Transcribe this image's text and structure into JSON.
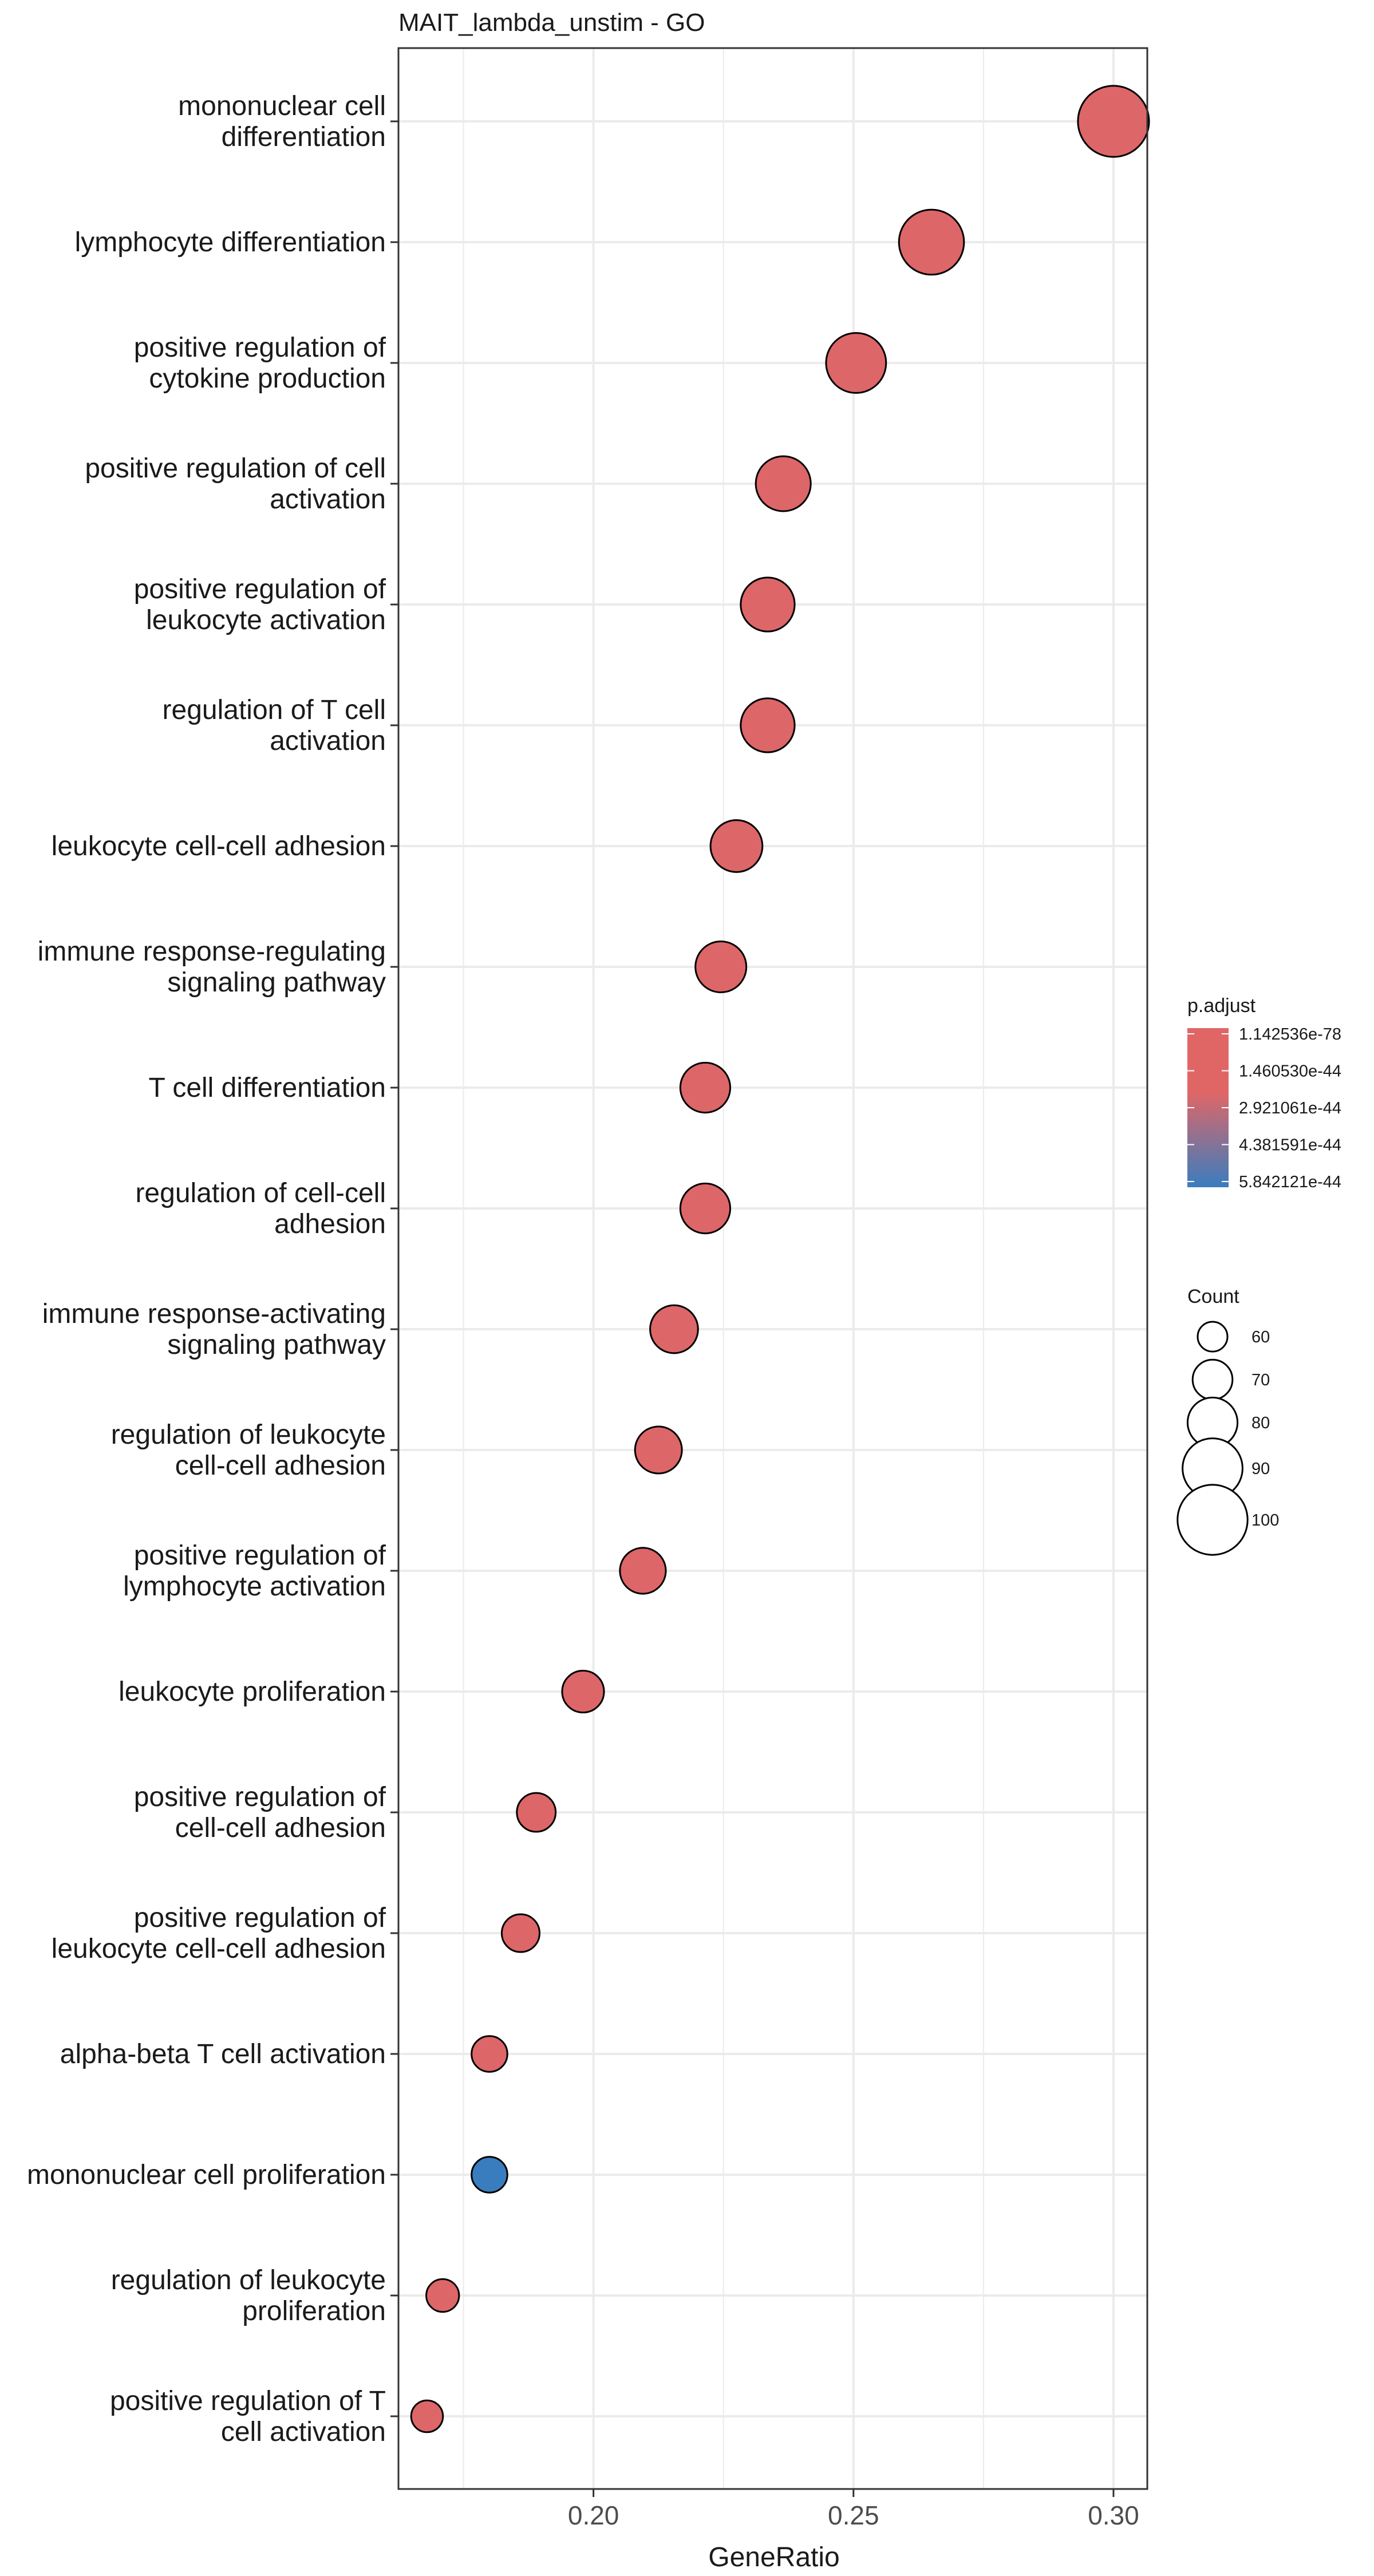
{
  "chart_data": {
    "type": "scatter",
    "title": "MAIT_lambda_unstim - GO",
    "xlabel": "GeneRatio",
    "ylabel": "",
    "xlim": [
      0.1625,
      0.3065
    ],
    "x_ticks": [
      0.2,
      0.25,
      0.3
    ],
    "x_tick_labels": [
      "0.20",
      "0.25",
      "0.30"
    ],
    "grid": true,
    "legend_placement": "right",
    "categories": [
      [
        "mononuclear cell",
        "differentiation"
      ],
      [
        "lymphocyte differentiation"
      ],
      [
        "positive regulation of",
        "cytokine production"
      ],
      [
        "positive regulation of cell",
        "activation"
      ],
      [
        "positive regulation of",
        "leukocyte activation"
      ],
      [
        "regulation of T cell",
        "activation"
      ],
      [
        "leukocyte cell-cell adhesion"
      ],
      [
        "immune response-regulating",
        "signaling pathway"
      ],
      [
        "T cell differentiation"
      ],
      [
        "regulation of cell-cell",
        "adhesion"
      ],
      [
        "immune response-activating",
        "signaling pathway"
      ],
      [
        "regulation of leukocyte",
        "cell-cell adhesion"
      ],
      [
        "positive regulation of",
        "lymphocyte activation"
      ],
      [
        "leukocyte proliferation"
      ],
      [
        "positive regulation of",
        "cell-cell adhesion"
      ],
      [
        "positive regulation of",
        "leukocyte cell-cell adhesion"
      ],
      [
        "alpha-beta T cell activation"
      ],
      [
        "mononuclear cell proliferation"
      ],
      [
        "regulation of leukocyte",
        "proliferation"
      ],
      [
        "positive regulation of T",
        "cell activation"
      ]
    ],
    "gene_ratio": [
      0.3,
      0.265,
      0.2505,
      0.2365,
      0.2335,
      0.2335,
      0.2275,
      0.2245,
      0.2215,
      0.2215,
      0.2155,
      0.2125,
      0.2095,
      0.198,
      0.189,
      0.186,
      0.18,
      0.18,
      0.171,
      0.168
    ],
    "count": [
      101,
      95,
      90,
      85,
      84,
      84,
      82,
      81,
      80,
      80,
      78,
      77,
      76,
      72,
      69,
      68,
      66,
      66,
      63,
      62
    ],
    "p_adjust_level": [
      0.02,
      0.02,
      0.02,
      0.02,
      0.02,
      0.02,
      0.02,
      0.02,
      0.02,
      0.02,
      0.02,
      0.02,
      0.02,
      0.02,
      0.02,
      0.02,
      0.02,
      1.0,
      0.02,
      0.02
    ],
    "colors": {
      "low": "#e06666",
      "high": "#3a7dbf",
      "mid": "#9a6b96",
      "point_stroke": "#000000",
      "grid": "#ebebeb",
      "panel_border": "#333333"
    },
    "legend": {
      "color_title": "p.adjust",
      "color_labels": [
        "1.142536e-78",
        "1.460530e-44",
        "2.921061e-44",
        "4.381591e-44",
        "5.842121e-44"
      ],
      "size_title": "Count",
      "size_values": [
        60,
        70,
        80,
        90,
        100
      ],
      "size_labels": [
        "60",
        "70",
        "80",
        "90",
        "100"
      ]
    }
  }
}
